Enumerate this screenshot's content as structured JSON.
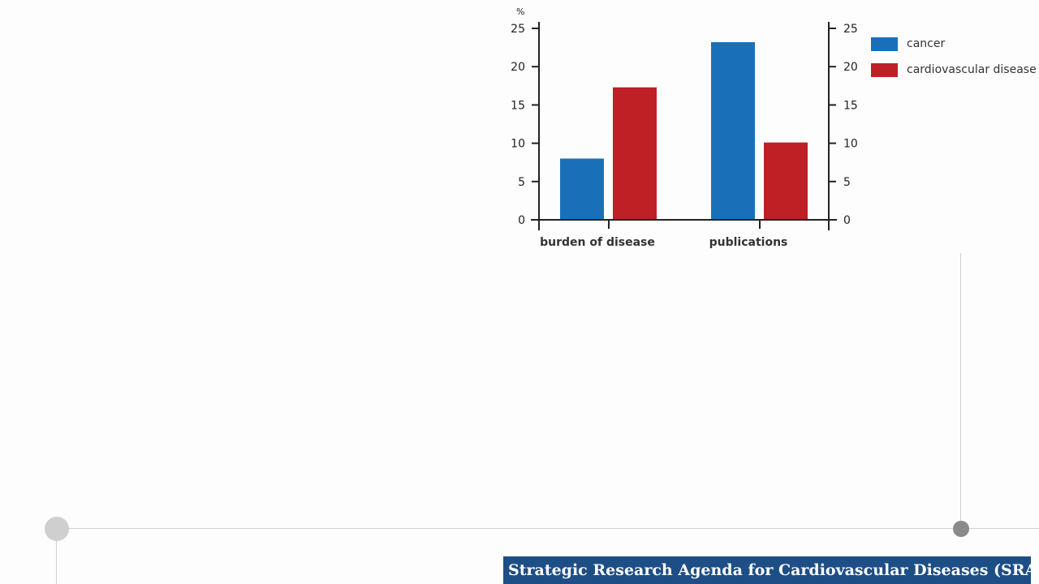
{
  "chart_data": {
    "type": "bar",
    "unit": "%",
    "categories": [
      "burden of disease",
      "publications"
    ],
    "series": [
      {
        "name": "cancer",
        "color": "#1a70b8",
        "values": [
          8,
          23.2
        ]
      },
      {
        "name": "cardiovascular disease",
        "color": "#be2026",
        "values": [
          17.3,
          10.1
        ]
      }
    ],
    "ylim": [
      0,
      25
    ],
    "yticks": [
      0,
      5,
      10,
      15,
      20,
      25
    ],
    "dual_y_axis": true,
    "grid": false,
    "legend_position": "right"
  },
  "footer": {
    "banner_text": "Strategic Research Agenda for Cardiovascular Diseases (SRA-CVD)"
  },
  "colors": {
    "banner_background": "#1d4e86",
    "axis": "#222222",
    "timeline": "#cfcfcf",
    "timeline_dot_active": "#8a8a8a"
  }
}
